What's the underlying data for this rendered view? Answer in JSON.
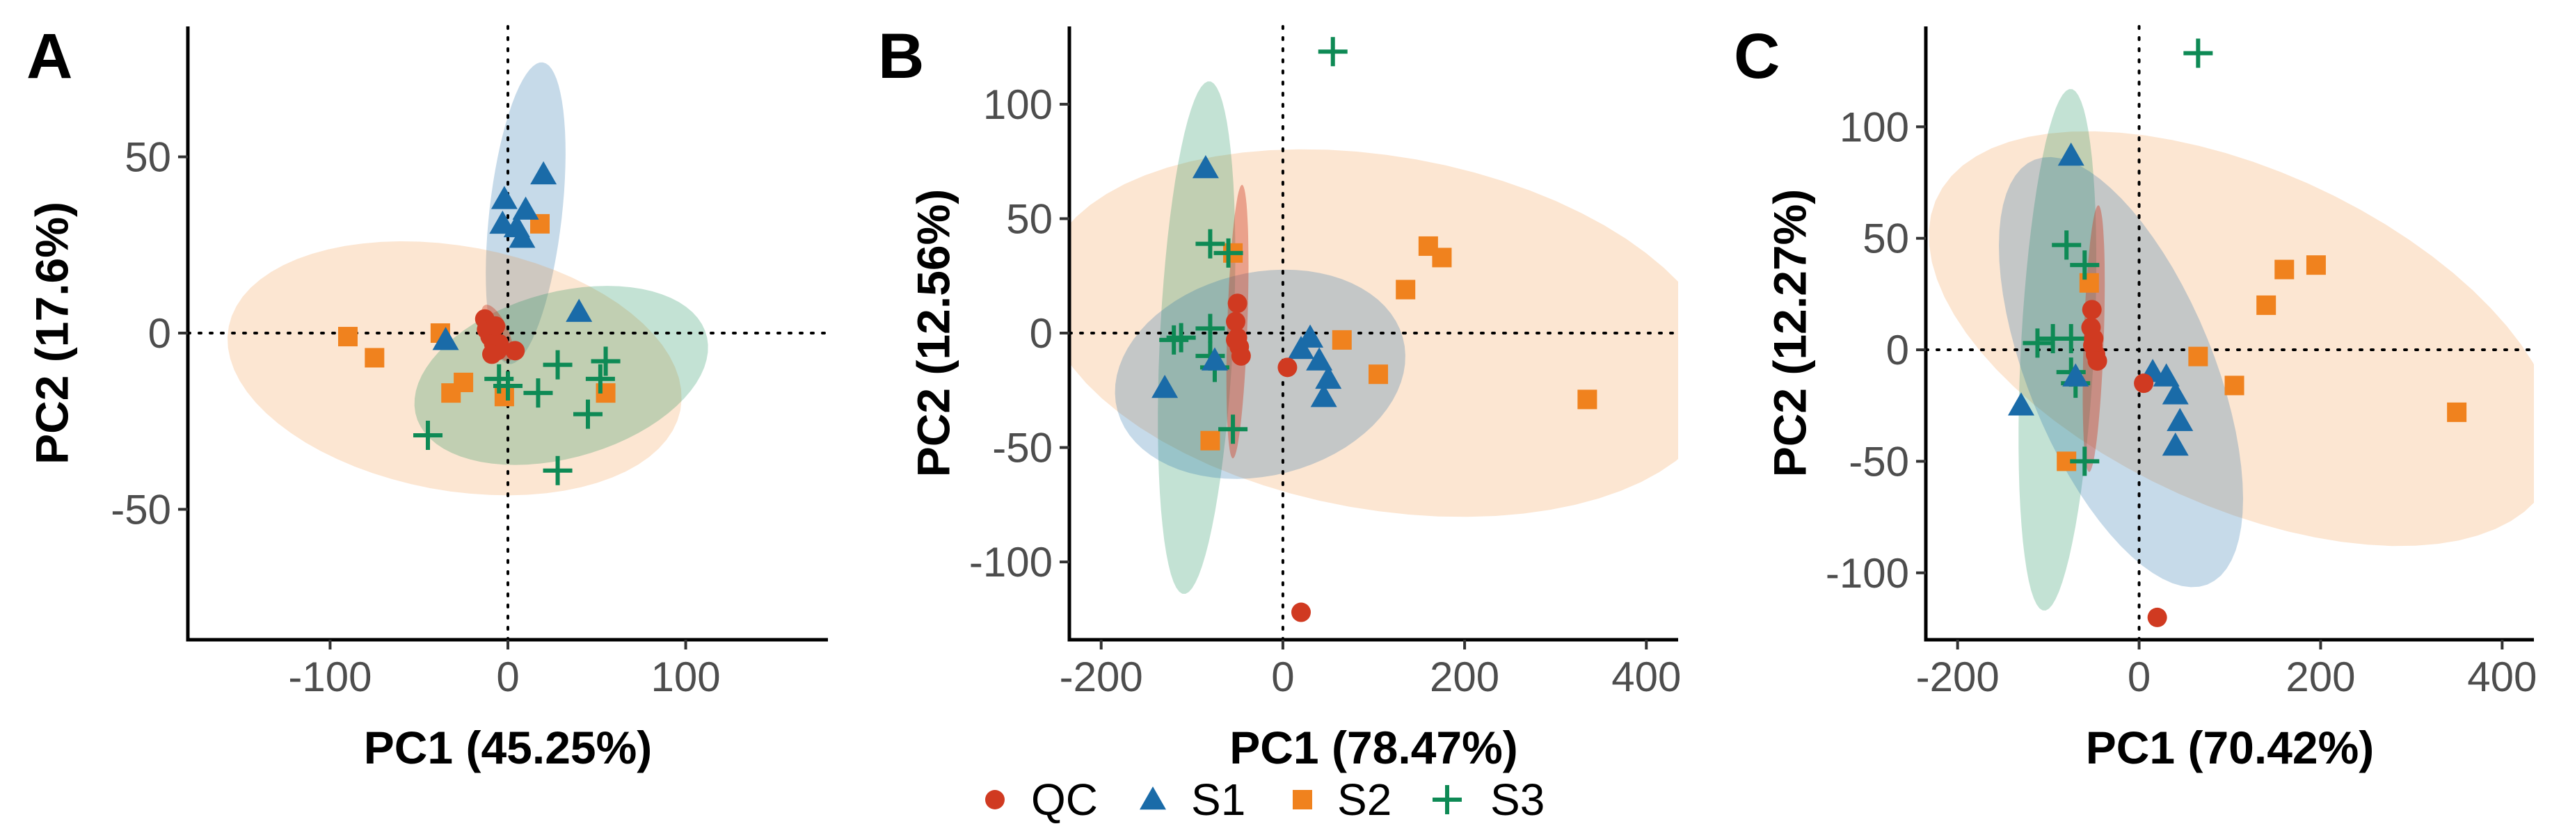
{
  "legend": {
    "items": [
      {
        "label": "QC",
        "shape": "circle",
        "color": "#D03A21"
      },
      {
        "label": "S1",
        "shape": "triangle",
        "color": "#1A6BA8"
      },
      {
        "label": "S2",
        "shape": "square",
        "color": "#F0821E"
      },
      {
        "label": "S3",
        "shape": "plus",
        "color": "#0E8A55"
      }
    ]
  },
  "chart_data": [
    {
      "type": "scatter",
      "panel": "A",
      "xlabel": "PC1 (45.25%)",
      "ylabel": "PC2 (17.6%)",
      "xlim": [
        -180,
        180
      ],
      "ylim": [
        -87,
        87
      ],
      "xticks": [
        -100,
        0,
        100
      ],
      "xtick_labels": [
        "-100",
        "0",
        "100"
      ],
      "yticks": [
        -50,
        0,
        50
      ],
      "ytick_labels": [
        "-50",
        "0",
        "50"
      ],
      "ellipses": [
        {
          "group": "S1",
          "cx": 10,
          "cy": 34,
          "rx": 44,
          "ry": 20,
          "angle": 75
        },
        {
          "group": "S2",
          "cx": -30,
          "cy": -10,
          "rx": 128,
          "ry": 35,
          "angle": -4
        },
        {
          "group": "S3",
          "cx": 30,
          "cy": -12,
          "rx": 83,
          "ry": 24,
          "angle": 6
        },
        {
          "group": "QC",
          "cx": -6,
          "cy": 0,
          "rx": 11,
          "ry": 5,
          "angle": -40
        }
      ],
      "series": [
        {
          "name": "QC",
          "points": [
            [
              -13,
              4
            ],
            [
              -12,
              1
            ],
            [
              -10,
              -1
            ],
            [
              -8,
              -3
            ],
            [
              -6,
              -5
            ],
            [
              -5,
              -3
            ],
            [
              -9,
              -6
            ],
            [
              -7,
              2
            ],
            [
              4,
              -5
            ]
          ]
        },
        {
          "name": "S1",
          "points": [
            [
              -3,
              31
            ],
            [
              -2,
              38
            ],
            [
              5,
              30
            ],
            [
              10,
              35
            ],
            [
              20,
              45
            ],
            [
              8,
              27
            ],
            [
              -35,
              -2
            ],
            [
              40,
              6
            ]
          ]
        },
        {
          "name": "S2",
          "points": [
            [
              -90,
              -1
            ],
            [
              -75,
              -7
            ],
            [
              -38,
              0
            ],
            [
              -32,
              -17
            ],
            [
              -25,
              -14
            ],
            [
              -2,
              -18
            ],
            [
              55,
              -17
            ],
            [
              18,
              31
            ]
          ]
        },
        {
          "name": "S3",
          "points": [
            [
              -45,
              -29
            ],
            [
              -5,
              -13
            ],
            [
              0,
              -15
            ],
            [
              17,
              -17
            ],
            [
              28,
              -9
            ],
            [
              28,
              -39
            ],
            [
              45,
              -23
            ],
            [
              52,
              -13
            ],
            [
              55,
              -8
            ]
          ]
        }
      ]
    },
    {
      "type": "scatter",
      "panel": "B",
      "xlabel": "PC1 (78.47%)",
      "ylabel": "PC2 (12.56%)",
      "xlim": [
        -235,
        435
      ],
      "ylim": [
        -134,
        134
      ],
      "xticks": [
        -200,
        0,
        200,
        400
      ],
      "xtick_labels": [
        "-200",
        "0",
        "200",
        "400"
      ],
      "yticks": [
        -100,
        -50,
        0,
        50,
        100
      ],
      "ytick_labels": [
        "-100",
        "-50",
        "0",
        "50",
        "100"
      ],
      "ellipses": [
        {
          "group": "S2",
          "cx": 110,
          "cy": 0,
          "rx": 375,
          "ry": 78,
          "angle": -3
        },
        {
          "group": "S3",
          "cx": -95,
          "cy": -2,
          "rx": 113,
          "ry": 40,
          "angle": 82
        },
        {
          "group": "S1",
          "cx": -25,
          "cy": -18,
          "rx": 160,
          "ry": 45,
          "angle": 3
        },
        {
          "group": "QC",
          "cx": -50,
          "cy": 5,
          "rx": 60,
          "ry": 11,
          "angle": 85
        }
      ],
      "series": [
        {
          "name": "QC",
          "points": [
            [
              -50,
              13
            ],
            [
              -52,
              5
            ],
            [
              -50,
              -2
            ],
            [
              -48,
              -6
            ],
            [
              -46,
              -10
            ],
            [
              -52,
              -3
            ],
            [
              5,
              -15
            ],
            [
              20,
              -122
            ]
          ]
        },
        {
          "name": "S1",
          "points": [
            [
              -85,
              72
            ],
            [
              -130,
              -24
            ],
            [
              -75,
              -12
            ],
            [
              20,
              -7
            ],
            [
              30,
              -2
            ],
            [
              40,
              -12
            ],
            [
              50,
              -20
            ],
            [
              45,
              -28
            ]
          ]
        },
        {
          "name": "S2",
          "points": [
            [
              -55,
              35
            ],
            [
              -80,
              -47
            ],
            [
              65,
              -3
            ],
            [
              105,
              -18
            ],
            [
              135,
              19
            ],
            [
              160,
              38
            ],
            [
              175,
              33
            ],
            [
              335,
              -29
            ]
          ]
        },
        {
          "name": "S3",
          "points": [
            [
              55,
              123
            ],
            [
              -80,
              39
            ],
            [
              -60,
              35
            ],
            [
              -80,
              2
            ],
            [
              -112,
              -2
            ],
            [
              -120,
              -3
            ],
            [
              -80,
              -10
            ],
            [
              -75,
              -15
            ],
            [
              -55,
              -42
            ]
          ]
        }
      ]
    },
    {
      "type": "scatter",
      "panel": "C",
      "xlabel": "PC1 (70.42%)",
      "ylabel": "PC2 (12.27%)",
      "xlim": [
        -235,
        435
      ],
      "ylim": [
        -130,
        145
      ],
      "xticks": [
        -200,
        0,
        200,
        400
      ],
      "xtick_labels": [
        "-200",
        "0",
        "200",
        "400"
      ],
      "yticks": [
        -100,
        -50,
        0,
        50,
        100
      ],
      "ytick_labels": [
        "-100",
        "-50",
        "0",
        "50",
        "100"
      ],
      "ellipses": [
        {
          "group": "S2",
          "cx": 115,
          "cy": 5,
          "rx": 350,
          "ry": 80,
          "angle": -8
        },
        {
          "group": "S3",
          "cx": -90,
          "cy": 0,
          "rx": 118,
          "ry": 40,
          "angle": 82
        },
        {
          "group": "S1",
          "cx": -20,
          "cy": -10,
          "rx": 150,
          "ry": 70,
          "angle": -30
        },
        {
          "group": "QC",
          "cx": -50,
          "cy": 5,
          "rx": 60,
          "ry": 11,
          "angle": 85
        }
      ],
      "series": [
        {
          "name": "QC",
          "points": [
            [
              -52,
              18
            ],
            [
              -53,
              10
            ],
            [
              -51,
              2
            ],
            [
              -48,
              -2
            ],
            [
              -46,
              -5
            ],
            [
              -50,
              5
            ],
            [
              5,
              -15
            ],
            [
              20,
              -120
            ]
          ]
        },
        {
          "name": "S1",
          "points": [
            [
              -75,
              87
            ],
            [
              -130,
              -25
            ],
            [
              -70,
              -12
            ],
            [
              15,
              -10
            ],
            [
              30,
              -12
            ],
            [
              40,
              -20
            ],
            [
              45,
              -32
            ],
            [
              40,
              -43
            ]
          ]
        },
        {
          "name": "S2",
          "points": [
            [
              -55,
              30
            ],
            [
              -80,
              -50
            ],
            [
              65,
              -3
            ],
            [
              105,
              -16
            ],
            [
              140,
              20
            ],
            [
              160,
              36
            ],
            [
              195,
              38
            ],
            [
              350,
              -28
            ]
          ]
        },
        {
          "name": "S3",
          "points": [
            [
              65,
              133
            ],
            [
              -80,
              47
            ],
            [
              -60,
              38
            ],
            [
              -75,
              5
            ],
            [
              -112,
              3
            ],
            [
              -95,
              5
            ],
            [
              -75,
              -10
            ],
            [
              -70,
              -15
            ],
            [
              -60,
              -50
            ]
          ]
        }
      ]
    }
  ]
}
